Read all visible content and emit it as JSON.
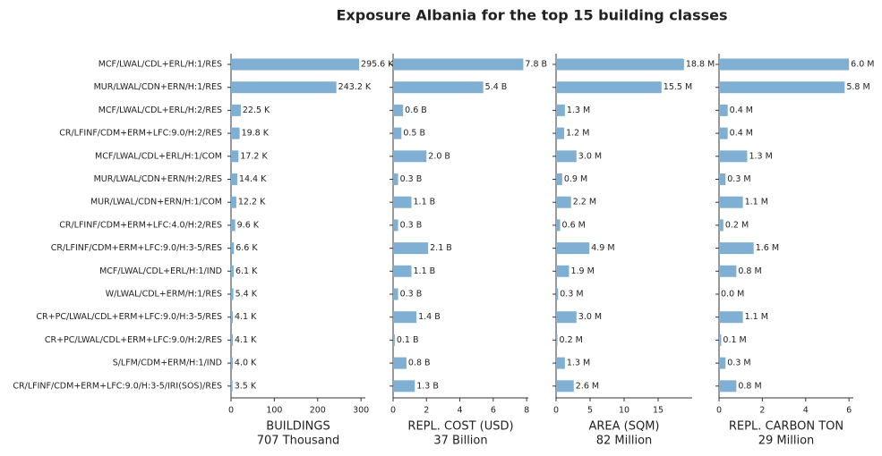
{
  "title": "Exposure Albania for the top 15 building classes",
  "chart_data": [
    {
      "type": "bar",
      "orientation": "horizontal",
      "xlabel": "BUILDINGS",
      "total": "707 Thousand",
      "color": "#7fb0d3",
      "categories": [
        "MCF/LWAL/CDL+ERL/H:1/RES",
        "MUR/LWAL/CDN+ERN/H:1/RES",
        "MCF/LWAL/CDL+ERL/H:2/RES",
        "CR/LFINF/CDM+ERM+LFC:9.0/H:2/RES",
        "MCF/LWAL/CDL+ERL/H:1/COM",
        "MUR/LWAL/CDN+ERN/H:2/RES",
        "MUR/LWAL/CDN+ERN/H:1/COM",
        "CR/LFINF/CDM+ERM+LFC:4.0/H:2/RES",
        "CR/LFINF/CDM+ERM+LFC:9.0/H:3-5/RES",
        "MCF/LWAL/CDL+ERL/H:1/IND",
        "W/LWAL/CDL+ERM/H:1/RES",
        "CR+PC/LWAL/CDL+ERM+LFC:9.0/H:3-5/RES",
        "CR+PC/LWAL/CDL+ERM+LFC:9.0/H:2/RES",
        "S/LFM/CDM+ERM/H:1/IND",
        "CR/LFINF/CDM+ERM+LFC:9.0/H:3-5/IRI(SOS)/RES"
      ],
      "values": [
        295.6,
        243.2,
        22.5,
        19.8,
        17.2,
        14.4,
        12.2,
        9.6,
        6.6,
        6.1,
        5.4,
        4.1,
        4.1,
        4.0,
        3.5
      ],
      "value_labels": [
        "295.6 K",
        "243.2 K",
        "22.5 K",
        "19.8 K",
        "17.2 K",
        "14.4 K",
        "12.2 K",
        "9.6 K",
        "6.6 K",
        "6.1 K",
        "5.4 K",
        "4.1 K",
        "4.1 K",
        "4.0 K",
        "3.5 K"
      ],
      "xlim": [
        0,
        310
      ],
      "xticks": [
        0,
        100,
        200,
        300
      ]
    },
    {
      "type": "bar",
      "orientation": "horizontal",
      "xlabel": "REPL. COST (USD)",
      "total": "37 Billion",
      "color": "#7fb0d3",
      "values": [
        7.8,
        5.4,
        0.6,
        0.5,
        2.0,
        0.3,
        1.1,
        0.3,
        2.1,
        1.1,
        0.3,
        1.4,
        0.1,
        0.8,
        1.3
      ],
      "value_labels": [
        "7.8 B",
        "5.4 B",
        "0.6 B",
        "0.5 B",
        "2.0 B",
        "0.3 B",
        "1.1 B",
        "0.3 B",
        "2.1 B",
        "1.1 B",
        "0.3 B",
        "1.4 B",
        "0.1 B",
        "0.8 B",
        "1.3 B"
      ],
      "xlim": [
        0,
        8.1
      ],
      "xticks": [
        0,
        2,
        4,
        6,
        8
      ]
    },
    {
      "type": "bar",
      "orientation": "horizontal",
      "xlabel": "AREA (SQM)",
      "total": "82 Million",
      "color": "#7fb0d3",
      "values": [
        18.8,
        15.5,
        1.3,
        1.2,
        3.0,
        0.9,
        2.2,
        0.6,
        4.9,
        1.9,
        0.3,
        3.0,
        0.2,
        1.3,
        2.6
      ],
      "value_labels": [
        "18.8 M",
        "15.5 M",
        "1.3 M",
        "1.2 M",
        "3.0 M",
        "0.9 M",
        "2.2 M",
        "0.6 M",
        "4.9 M",
        "1.9 M",
        "0.3 M",
        "3.0 M",
        "0.2 M",
        "1.3 M",
        "2.6 M"
      ],
      "xlim": [
        0,
        20
      ],
      "xticks": [
        0,
        5,
        10,
        15
      ]
    },
    {
      "type": "bar",
      "orientation": "horizontal",
      "xlabel": "REPL. CARBON TON",
      "total": "29 Million",
      "color": "#7fb0d3",
      "values": [
        6.0,
        5.8,
        0.4,
        0.4,
        1.3,
        0.3,
        1.1,
        0.2,
        1.6,
        0.8,
        0.0,
        1.1,
        0.1,
        0.3,
        0.8
      ],
      "value_labels": [
        "6.0 M",
        "5.8 M",
        "0.4 M",
        "0.4 M",
        "1.3 M",
        "0.3 M",
        "1.1 M",
        "0.2 M",
        "1.6 M",
        "0.8 M",
        "0.0 M",
        "1.1 M",
        "0.1 M",
        "0.3 M",
        "0.8 M"
      ],
      "xlim": [
        0,
        6.2
      ],
      "xticks": [
        0,
        2,
        4,
        6
      ]
    }
  ]
}
